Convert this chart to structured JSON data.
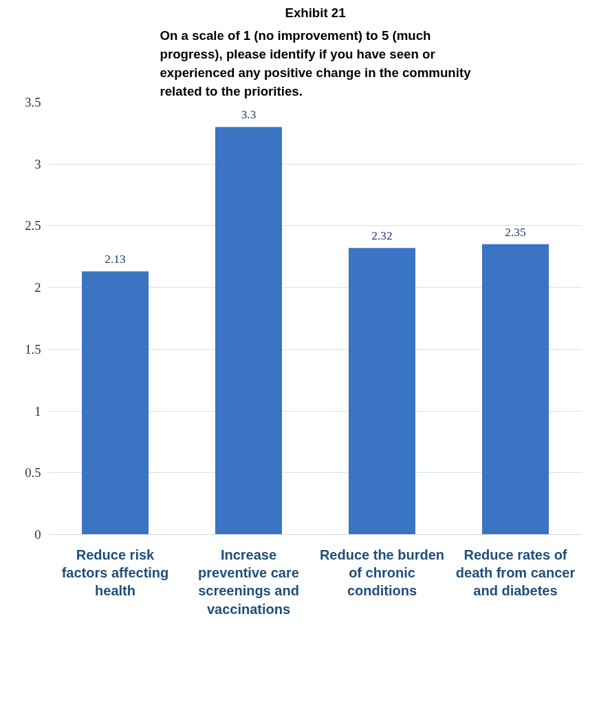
{
  "chart_data": {
    "type": "bar",
    "title": "Exhibit 21",
    "subtitle": "On a scale of 1 (no improvement) to 5 (much progress), please identify if you have seen or experienced any positive change in the community related to the priorities.",
    "categories": [
      "Reduce risk factors affecting health",
      "Increase preventive care screenings and vaccinations",
      "Reduce the burden of chronic conditions",
      "Reduce rates of death from cancer and diabetes"
    ],
    "values": [
      2.13,
      3.3,
      2.32,
      2.35
    ],
    "color": "#3a74c2",
    "ylim": [
      0,
      3.5
    ],
    "yticks": [
      0,
      0.5,
      1,
      1.5,
      2,
      2.5,
      3,
      3.5
    ],
    "grid": "y",
    "data_labels": true
  }
}
